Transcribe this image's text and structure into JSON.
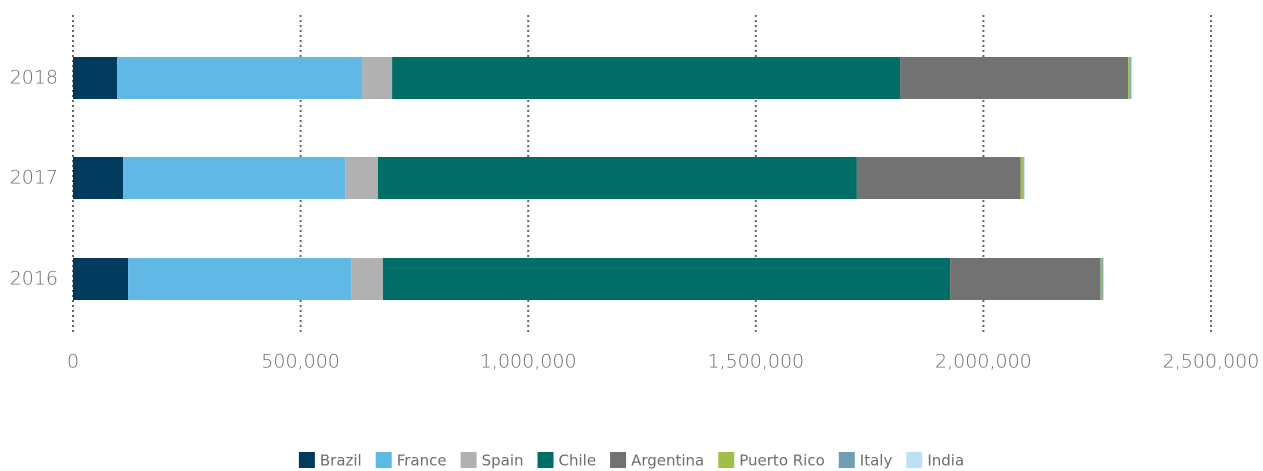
{
  "chart_data": {
    "type": "stacked-bar-horizontal",
    "categories": [
      "2018",
      "2017",
      "2016"
    ],
    "series": [
      {
        "name": "Brazil",
        "color": "#003a5c",
        "values": [
          97000,
          110000,
          121000
        ]
      },
      {
        "name": "France",
        "color": "#62b8e5",
        "values": [
          538000,
          488000,
          490000
        ]
      },
      {
        "name": "Spain",
        "color": "#b1b1b1",
        "values": [
          66000,
          72000,
          70000
        ]
      },
      {
        "name": "Chile",
        "color": "#006e66",
        "values": [
          1116000,
          1052000,
          1246000
        ]
      },
      {
        "name": "Argentina",
        "color": "#727272",
        "values": [
          501000,
          360000,
          330000
        ]
      },
      {
        "name": "Puerto Rico",
        "color": "#9fbf4a",
        "values": [
          4000,
          6000,
          4000
        ]
      },
      {
        "name": "Italy",
        "color": "#6f9fb5",
        "values": [
          2000,
          1000,
          2000
        ]
      },
      {
        "name": "India",
        "color": "#bde0f5",
        "values": [
          3000,
          2000,
          2000
        ]
      }
    ],
    "xlim": [
      0,
      2500000
    ],
    "xticks": [
      0,
      {
        "value": 500000,
        "label": "500,000"
      },
      {
        "value": 1000000,
        "label": "1,000,000"
      },
      {
        "value": 1500000,
        "label": "1,500,000"
      },
      {
        "value": 2000000,
        "label": "2,000,000"
      },
      {
        "value": 2500000,
        "label": "2,500,000"
      }
    ],
    "grid": true
  }
}
